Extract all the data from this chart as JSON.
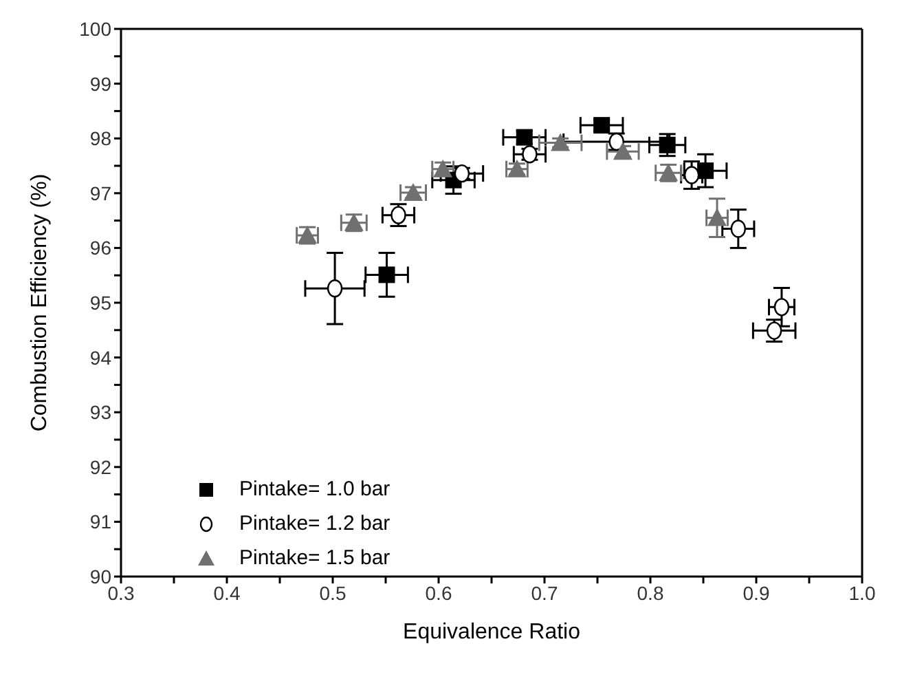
{
  "chart_data": {
    "type": "scatter",
    "xlabel": "Equivalence Ratio",
    "ylabel": "Combustion Efficiency (%)",
    "xlim": [
      0.3,
      1.0
    ],
    "ylim": [
      90,
      100
    ],
    "xticks": [
      0.3,
      {
        "value": 0.35,
        "label": null
      },
      0.4,
      {
        "value": 0.45,
        "label": null
      },
      0.5,
      {
        "value": 0.55,
        "label": null
      },
      0.6,
      {
        "value": 0.65,
        "label": null
      },
      0.7,
      {
        "value": 0.75,
        "label": null
      },
      0.8,
      {
        "value": 0.85,
        "label": null
      },
      0.9,
      {
        "value": 0.95,
        "label": null
      },
      {
        "value": 1.0,
        "label": "1.0"
      }
    ],
    "yticks": [
      90,
      {
        "value": 90.5,
        "label": null
      },
      91,
      {
        "value": 91.5,
        "label": null
      },
      92,
      {
        "value": 92.5,
        "label": null
      },
      93,
      {
        "value": 93.5,
        "label": null
      },
      94,
      {
        "value": 94.5,
        "label": null
      },
      95,
      {
        "value": 95.5,
        "label": null
      },
      96,
      {
        "value": 96.5,
        "label": null
      },
      97,
      {
        "value": 97.5,
        "label": null
      },
      98,
      {
        "value": 98.5,
        "label": null
      },
      99,
      {
        "value": 99.5,
        "label": null
      },
      100
    ],
    "legend": "bottom left",
    "series": [
      {
        "name": "Pintake= 1.0 bar",
        "color": "#000000",
        "marker": "square",
        "x": [
          0.551,
          0.614,
          0.681,
          0.754,
          0.816,
          0.852
        ],
        "values": [
          95.51,
          97.24,
          98.02,
          98.24,
          97.88,
          97.41
        ],
        "errors": [
          0.4,
          0.25,
          0.12,
          0.1,
          0.2,
          0.3
        ],
        "xerrors": [
          0.02,
          0.02,
          0.02,
          0.02,
          0.017,
          0.02
        ]
      },
      {
        "name": "Pintake= 1.2 bar",
        "color": "#000000",
        "marker": "circle",
        "x": [
          0.502,
          0.562,
          0.622,
          0.686,
          0.768,
          0.839,
          0.883,
          0.924,
          0.917
        ],
        "values": [
          95.26,
          96.6,
          97.36,
          97.71,
          97.94,
          97.33,
          96.35,
          94.92,
          94.49
        ],
        "errors": [
          0.65,
          0.2,
          0.1,
          0.1,
          0.15,
          0.25,
          0.35,
          0.35,
          0.2
        ],
        "xerrors": [
          0.028,
          0.015,
          0.02,
          0.015,
          0.05,
          0.01,
          0.015,
          0.012,
          0.02
        ]
      },
      {
        "name": "Pintake= 1.5 bar",
        "color": "#707070",
        "marker": "triangle",
        "x": [
          0.476,
          0.52,
          0.576,
          0.604,
          0.674,
          0.715,
          0.774,
          0.817,
          0.863
        ],
        "values": [
          96.23,
          96.46,
          97.01,
          97.44,
          97.44,
          97.92,
          97.76,
          97.37,
          96.55
        ],
        "errors": [
          0.15,
          0.15,
          0.1,
          0.12,
          0.1,
          0.08,
          0.1,
          0.15,
          0.35
        ],
        "xerrors": [
          0.01,
          0.012,
          0.012,
          0.01,
          0.01,
          0.02,
          0.015,
          0.012,
          0.01
        ]
      }
    ]
  }
}
